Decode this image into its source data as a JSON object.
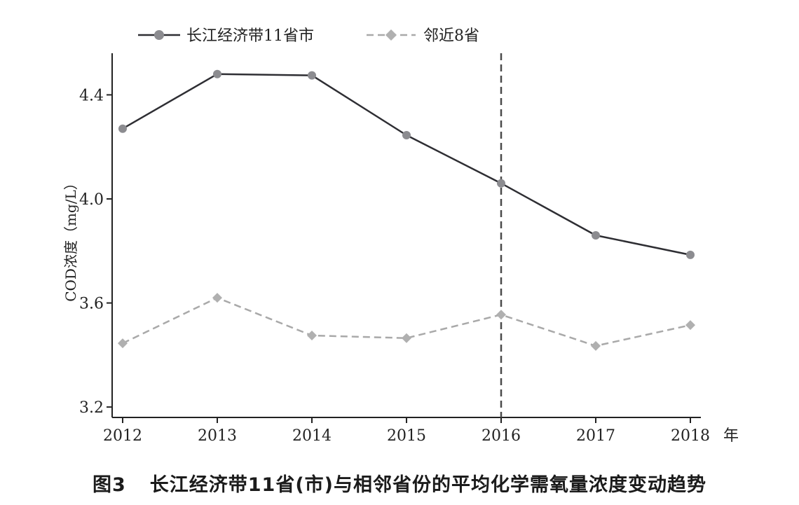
{
  "chart_data": {
    "type": "line",
    "x": [
      "2012",
      "2013",
      "2014",
      "2015",
      "2016",
      "2017",
      "2018"
    ],
    "x_unit": "年",
    "ylabel": "COD浓度（mg/L）",
    "ylim": [
      3.16,
      4.56
    ],
    "yticks": [
      "3.2",
      "3.6",
      "4.0",
      "4.4"
    ],
    "ytick_values": [
      3.2,
      3.6,
      4.0,
      4.4
    ],
    "series": [
      {
        "name": "长江经济带11省市",
        "values": [
          4.27,
          4.48,
          4.475,
          4.245,
          4.06,
          3.86,
          3.785
        ],
        "color": "#2e2e33",
        "marker": "circle",
        "marker_color": "#8c8c90",
        "dash": "solid"
      },
      {
        "name": "邻近8省",
        "values": [
          3.445,
          3.62,
          3.475,
          3.465,
          3.555,
          3.435,
          3.515
        ],
        "color": "#a9a9a9",
        "marker": "diamond",
        "marker_color": "#b0b0b0",
        "dash": "dashed"
      }
    ],
    "vline": {
      "x": "2016",
      "color": "#4a4a4a",
      "dash": "dashed"
    },
    "legend_position": "top-left",
    "grid": false
  },
  "caption": {
    "figure_number": "图3",
    "text": "长江经济带11省(市)与相邻省份的平均化学需氧量浓度变动趋势"
  }
}
